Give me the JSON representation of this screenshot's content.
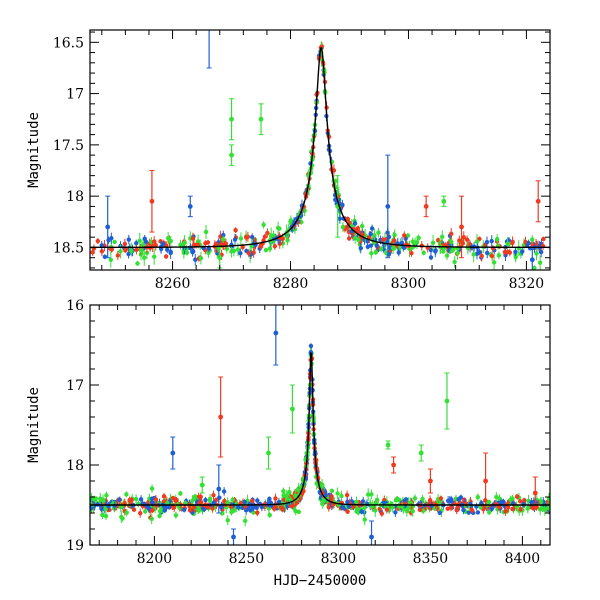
{
  "chart_data": [
    {
      "type": "scatter",
      "panel": "top",
      "xlabel": "",
      "ylabel": "Magnitude",
      "xlim": [
        8246,
        8324
      ],
      "ylim": [
        18.72,
        16.38
      ],
      "y_inverted": true,
      "x_ticks": [
        8260,
        8280,
        8300,
        8320
      ],
      "y_ticks": [
        16.5,
        17,
        17.5,
        18,
        18.5
      ],
      "x_tick_labels": [
        "8260",
        "8280",
        "8300",
        "8320"
      ],
      "y_tick_labels": [
        "16.5",
        "17",
        "17.5",
        "18",
        "18.5"
      ],
      "model_curve": {
        "t0": 8285.2,
        "baseline": 18.5,
        "peak": 16.55,
        "tE": 1.8
      },
      "series": [
        {
          "color": "#1f5fd6",
          "outliers": [
            [
              8266.2,
              16.35,
              0.4
            ],
            [
              8263,
              18.1,
              0.1
            ],
            [
              8249,
              18.3,
              0.3
            ],
            [
              8296.5,
              18.1,
              0.5
            ],
            [
              8321,
              18.62,
              0.1
            ]
          ]
        },
        {
          "color": "#f03a1e",
          "outliers": [
            [
              8256.5,
              18.05,
              0.3
            ],
            [
              8309,
              18.3,
              0.3
            ],
            [
              8322,
              18.05,
              0.2
            ],
            [
              8303,
              18.1,
              0.1
            ]
          ]
        },
        {
          "color": "#33e033",
          "outliers": [
            [
              8270,
              17.25,
              0.2
            ],
            [
              8270,
              17.6,
              0.1
            ],
            [
              8275,
              17.25,
              0.15
            ],
            [
              8288,
              18.1,
              0.3
            ],
            [
              8306,
              18.05,
              0.05
            ],
            [
              8268,
              18.6,
              0.1
            ]
          ]
        }
      ]
    },
    {
      "type": "scatter",
      "panel": "bottom",
      "xlabel": "HJD−2450000",
      "ylabel": "Magnitude",
      "xlim": [
        8165,
        8415
      ],
      "ylim": [
        19,
        16
      ],
      "y_inverted": true,
      "x_ticks": [
        8200,
        8250,
        8300,
        8350,
        8400
      ],
      "y_ticks": [
        16,
        17,
        18,
        19
      ],
      "x_tick_labels": [
        "8200",
        "8250",
        "8300",
        "8350",
        "8400"
      ],
      "y_tick_labels": [
        "16",
        "17",
        "18",
        "19"
      ],
      "model_curve": {
        "t0": 8285.2,
        "baseline": 18.5,
        "peak": 16.55,
        "tE": 1.8
      },
      "series": [
        {
          "color": "#1f5fd6",
          "outliers": [
            [
              8266,
              16.35,
              0.4
            ],
            [
              8210,
              17.85,
              0.2
            ],
            [
              8235,
              18.3,
              0.3
            ],
            [
              8318,
              18.9,
              0.2
            ],
            [
              8243,
              18.9,
              0.1
            ]
          ]
        },
        {
          "color": "#f03a1e",
          "outliers": [
            [
              8236,
              17.4,
              0.5
            ],
            [
              8380,
              18.2,
              0.35
            ],
            [
              8407,
              18.35,
              0.2
            ],
            [
              8330,
              18.0,
              0.1
            ],
            [
              8350,
              18.2,
              0.15
            ]
          ]
        },
        {
          "color": "#33e033",
          "outliers": [
            [
              8359,
              17.2,
              0.35
            ],
            [
              8275,
              17.3,
              0.3
            ],
            [
              8345,
              17.85,
              0.1
            ],
            [
              8327,
              17.75,
              0.05
            ],
            [
              8262,
              17.85,
              0.2
            ],
            [
              8226,
              18.25,
              0.1
            ]
          ]
        }
      ]
    }
  ]
}
